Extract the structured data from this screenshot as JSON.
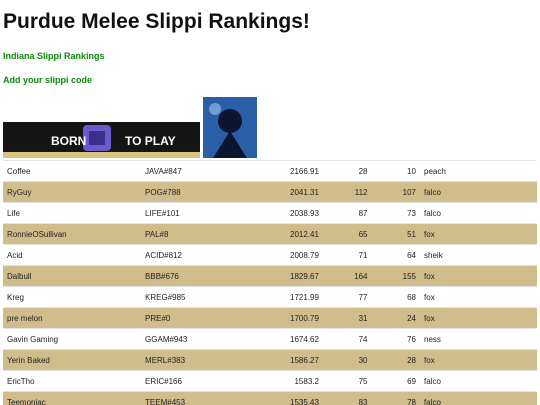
{
  "header": {
    "title": "Purdue Melee Slippi Rankings!"
  },
  "links": [
    "Indiana Slippi Rankings",
    "Add your slippi code"
  ],
  "banner": {
    "text": [
      "BORN",
      "TO PLAY"
    ]
  },
  "table": {
    "rows": [
      [
        "Coffee",
        "JAVA#847",
        "2166.91",
        "28",
        "10",
        "peach"
      ],
      [
        "RyGuy",
        "POG#788",
        "2041.31",
        "112",
        "107",
        "falco"
      ],
      [
        "Life",
        "LIFE#101",
        "2038.93",
        "87",
        "73",
        "falco"
      ],
      [
        "RonnieOSullivan",
        "PAL#8",
        "2012.41",
        "65",
        "51",
        "fox"
      ],
      [
        "Acid",
        "ACID#812",
        "2008.79",
        "71",
        "64",
        "sheik"
      ],
      [
        "Dalbull",
        "BBB#676",
        "1829.67",
        "164",
        "155",
        "fox"
      ],
      [
        "Kreg",
        "KREG#985",
        "1721.99",
        "77",
        "68",
        "fox"
      ],
      [
        "pre melon",
        "PRE#0",
        "1700.79",
        "31",
        "24",
        "fox"
      ],
      [
        "Gavin Gaming",
        "GGAM#943",
        "1674.62",
        "74",
        "76",
        "ness"
      ],
      [
        "Yerin Baked",
        "MERL#383",
        "1586.27",
        "30",
        "28",
        "fox"
      ],
      [
        "EricTho",
        "ERIC#166",
        "1583.2",
        "75",
        "69",
        "falco"
      ],
      [
        "Teemoniac",
        "TEEM#453",
        "1535.43",
        "83",
        "78",
        "falco"
      ]
    ]
  }
}
